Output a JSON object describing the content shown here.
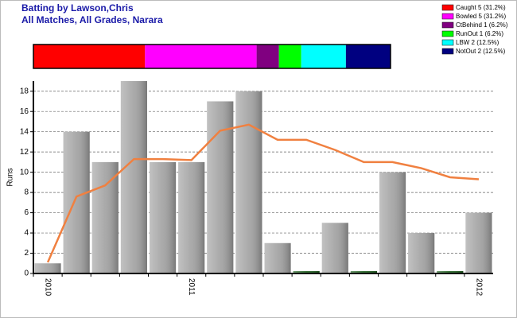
{
  "header": {
    "title": "Batting by Lawson,Chris",
    "subtitle": "All Matches, All Grades, Narara"
  },
  "chart_data": [
    {
      "type": "stacked-hbar",
      "series": [
        {
          "name": "Caught 5 (31.2%)",
          "color": "#ff0000",
          "values": [
            5
          ]
        },
        {
          "name": "Bowled 5 (31.2%)",
          "color": "#ff00ff",
          "values": [
            5
          ]
        },
        {
          "name": "CtBehind 1 (6.2%)",
          "color": "#800080",
          "values": [
            1
          ]
        },
        {
          "name": "RunOut 1 (6.2%)",
          "color": "#00ff00",
          "values": [
            1
          ]
        },
        {
          "name": "LBW 2 (12.5%)",
          "color": "#00ffff",
          "values": [
            2
          ]
        },
        {
          "name": "NotOut 2 (12.5%)",
          "color": "#000080",
          "values": [
            2
          ]
        }
      ]
    },
    {
      "type": "bar-line",
      "y_label": "Runs",
      "categories": [
        "2010",
        null,
        null,
        null,
        null,
        "2011",
        null,
        null,
        null,
        null,
        null,
        null,
        null,
        null,
        null,
        "2012"
      ],
      "values": [
        1,
        14,
        11,
        19,
        11,
        11,
        17,
        18,
        3,
        0,
        5,
        0,
        10,
        4,
        0,
        6
      ],
      "bar_colors": [
        "#a0a0a0",
        "#a0a0a0",
        "#a0a0a0",
        "#a0a0a0",
        "#a0a0a0",
        "#a0a0a0",
        "#a0a0a0",
        "#a0a0a0",
        "#a0a0a0",
        "#1f5f1f",
        "#a0a0a0",
        "#1f5f1f",
        "#a0a0a0",
        "#a0a0a0",
        "#1f5f1f",
        "#a0a0a0"
      ],
      "line": {
        "color": "#f08040",
        "values": [
          1.1,
          7.6,
          8.7,
          11.3,
          11.3,
          11.2,
          14.1,
          14.7,
          13.2,
          13.2,
          12.2,
          11,
          11,
          10.4,
          9.5,
          9.3
        ]
      },
      "ylim": [
        0,
        19
      ],
      "yticks": [
        0,
        2,
        4,
        6,
        8,
        10,
        12,
        14,
        16,
        18
      ],
      "grid": true
    }
  ]
}
